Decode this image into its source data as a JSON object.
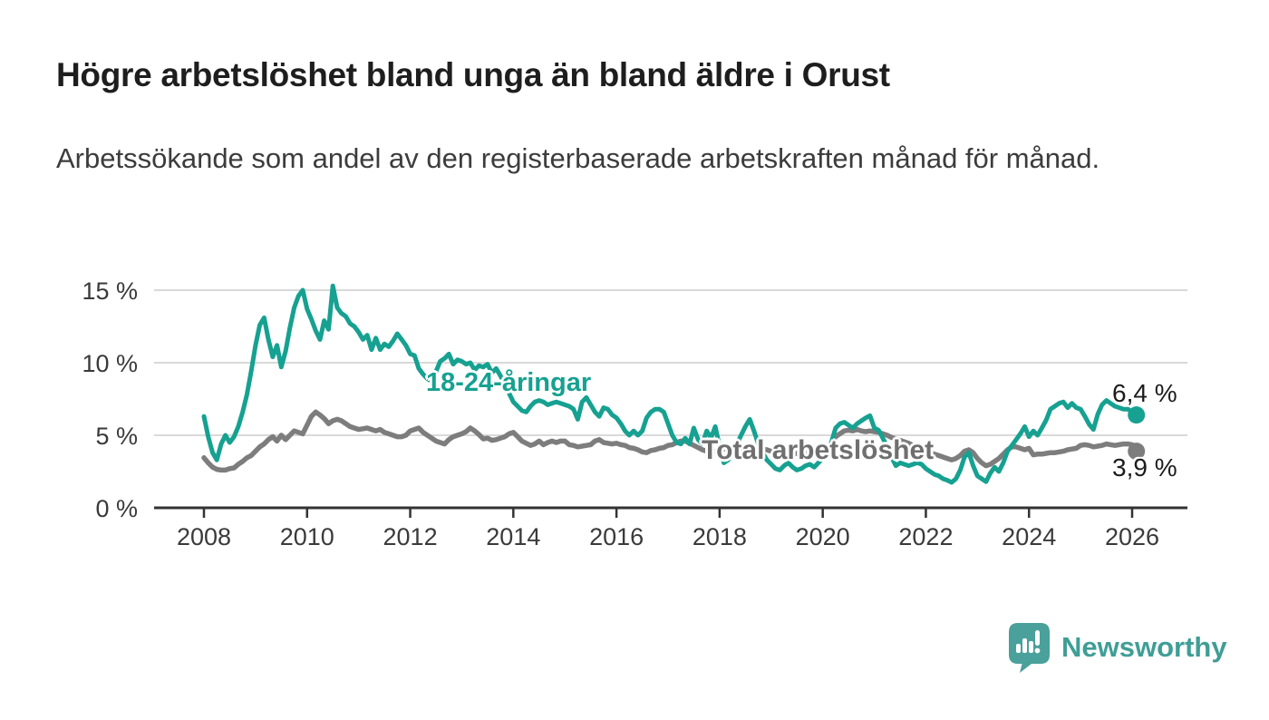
{
  "header": {
    "title": "Högre arbetslöshet bland unga än bland äldre i Orust",
    "subtitle": "Arbetssökande som andel av den registerbaserade arbetskraften månad för månad."
  },
  "chart_data": {
    "type": "line",
    "title": "Högre arbetslöshet bland unga än bland äldre i Orust",
    "subtitle": "Arbetssökande som andel av den registerbaserade arbetskraften månad för månad.",
    "unit": "%",
    "frequency": "monthly",
    "x_start": "2008-01",
    "x_end": "2026-02",
    "ylim": [
      0,
      16
    ],
    "grid": "horizontal",
    "legend_position": "inline-labels",
    "style": {
      "grid_color": "#d9d9d9",
      "axis_color": "#333333",
      "tick_text_color": "#3a3a3a",
      "background": "#ffffff"
    },
    "y_axis": {
      "ticks": [
        {
          "label": "0 %",
          "value": 0
        },
        {
          "label": "5 %",
          "value": 5
        },
        {
          "label": "10 %",
          "value": 10
        },
        {
          "label": "15 %",
          "value": 15
        }
      ]
    },
    "x_axis": {
      "ticks": [
        {
          "label": "2008",
          "year": 2008
        },
        {
          "label": "2010",
          "year": 2010
        },
        {
          "label": "2012",
          "year": 2012
        },
        {
          "label": "2014",
          "year": 2014
        },
        {
          "label": "2016",
          "year": 2016
        },
        {
          "label": "2018",
          "year": 2018
        },
        {
          "label": "2020",
          "year": 2020
        },
        {
          "label": "2022",
          "year": 2022
        },
        {
          "label": "2024",
          "year": 2024
        },
        {
          "label": "2026",
          "year": 2026
        }
      ]
    },
    "series": [
      {
        "id": "youth",
        "name": "18-24-åringar",
        "color": "#16a191",
        "width": 5,
        "end_label": "6,4 %",
        "end_value": 6.4,
        "values": [
          6.3,
          4.9,
          3.8,
          3.3,
          4.4,
          5.0,
          4.5,
          4.9,
          5.6,
          6.6,
          7.8,
          9.4,
          11.2,
          12.6,
          13.1,
          11.6,
          10.4,
          11.2,
          9.7,
          10.8,
          12.4,
          13.8,
          14.6,
          15.0,
          13.7,
          13.0,
          12.2,
          11.6,
          12.9,
          12.3,
          15.3,
          13.8,
          13.4,
          13.2,
          12.7,
          12.5,
          12.1,
          11.6,
          11.9,
          10.9,
          11.7,
          10.9,
          11.3,
          11.1,
          11.5,
          12.0,
          11.6,
          11.2,
          10.6,
          10.5,
          9.6,
          9.2,
          8.9,
          8.7,
          9.4,
          10.1,
          10.3,
          10.6,
          9.9,
          10.2,
          10.1,
          9.9,
          10.0,
          9.5,
          9.8,
          9.7,
          9.9,
          9.3,
          9.6,
          9.1,
          8.5,
          7.9,
          7.3,
          7.0,
          6.7,
          6.6,
          7.0,
          7.3,
          7.4,
          7.3,
          7.1,
          7.2,
          7.3,
          7.2,
          7.1,
          7.0,
          6.8,
          6.1,
          7.3,
          7.6,
          7.1,
          6.6,
          6.3,
          6.9,
          6.8,
          6.4,
          6.2,
          5.8,
          5.3,
          5.0,
          5.3,
          5.0,
          5.3,
          6.2,
          6.6,
          6.8,
          6.8,
          6.6,
          5.8,
          5.0,
          4.5,
          4.4,
          4.8,
          4.4,
          5.5,
          4.7,
          4.4,
          5.3,
          4.8,
          5.6,
          4.2,
          3.1,
          3.3,
          3.8,
          4.4,
          5.0,
          5.6,
          6.1,
          5.3,
          4.4,
          3.8,
          3.3,
          3.0,
          2.7,
          2.6,
          2.9,
          3.1,
          2.8,
          2.6,
          2.7,
          2.9,
          3.0,
          2.8,
          3.1,
          3.4,
          3.6,
          4.5,
          5.5,
          5.8,
          5.9,
          5.7,
          5.5,
          5.8,
          6.0,
          6.2,
          6.35,
          5.5,
          5.35,
          4.8,
          4.2,
          3.5,
          2.9,
          3.1,
          3.0,
          2.9,
          3.0,
          3.1,
          3.0,
          2.7,
          2.5,
          2.3,
          2.2,
          2.0,
          1.9,
          1.75,
          2.0,
          2.6,
          3.5,
          3.8,
          2.9,
          2.2,
          2.0,
          1.8,
          2.4,
          2.8,
          2.5,
          3.1,
          3.9,
          4.3,
          4.7,
          5.1,
          5.6,
          4.9,
          5.3,
          5.0,
          5.5,
          6.05,
          6.8,
          7.0,
          7.2,
          7.3,
          6.9,
          7.2,
          6.9,
          6.8,
          6.3,
          5.75,
          5.4,
          6.45,
          7.1,
          7.4,
          7.2,
          7.0,
          6.9,
          6.8,
          6.8,
          6.6,
          6.4
        ]
      },
      {
        "id": "total",
        "name": "Total arbetslöshet",
        "color": "#7d7d7d",
        "label_color": "#6f6f6f",
        "width": 5.5,
        "end_label": "3,9 %",
        "end_value": 3.9,
        "values": [
          3.45,
          3.1,
          2.8,
          2.65,
          2.6,
          2.6,
          2.7,
          2.75,
          3.0,
          3.2,
          3.45,
          3.6,
          3.9,
          4.2,
          4.4,
          4.7,
          4.9,
          4.6,
          5.0,
          4.7,
          5.0,
          5.3,
          5.2,
          5.1,
          5.7,
          6.3,
          6.6,
          6.4,
          6.15,
          5.8,
          6.0,
          6.1,
          6.0,
          5.8,
          5.6,
          5.5,
          5.4,
          5.45,
          5.5,
          5.4,
          5.3,
          5.4,
          5.2,
          5.1,
          5.0,
          4.9,
          4.9,
          5.0,
          5.3,
          5.4,
          5.5,
          5.2,
          5.0,
          4.8,
          4.6,
          4.5,
          4.4,
          4.7,
          4.9,
          5.0,
          5.1,
          5.25,
          5.5,
          5.3,
          5.05,
          4.75,
          4.8,
          4.65,
          4.7,
          4.8,
          4.9,
          5.1,
          5.2,
          4.9,
          4.6,
          4.45,
          4.3,
          4.4,
          4.6,
          4.35,
          4.5,
          4.6,
          4.5,
          4.6,
          4.6,
          4.35,
          4.3,
          4.2,
          4.25,
          4.3,
          4.35,
          4.6,
          4.7,
          4.5,
          4.45,
          4.4,
          4.45,
          4.35,
          4.3,
          4.15,
          4.1,
          4.0,
          3.85,
          3.8,
          3.95,
          4.0,
          4.1,
          4.15,
          4.3,
          4.35,
          4.5,
          4.6,
          4.6,
          4.45,
          4.3,
          4.15,
          4.0,
          3.9,
          3.85,
          3.9,
          4.0,
          4.05,
          4.1,
          4.05,
          4.0,
          3.95,
          3.9,
          3.95,
          4.05,
          4.1,
          4.05,
          4.0,
          3.9,
          3.85,
          3.8,
          3.75,
          3.7,
          3.7,
          3.75,
          3.7,
          3.7,
          3.8,
          3.9,
          4.0,
          4.0,
          4.1,
          4.4,
          4.9,
          5.1,
          5.3,
          5.35,
          5.3,
          5.4,
          5.3,
          5.25,
          5.3,
          5.25,
          5.2,
          5.1,
          5.0,
          4.85,
          4.75,
          4.65,
          4.55,
          4.45,
          4.3,
          4.2,
          4.1,
          3.9,
          3.8,
          3.7,
          3.6,
          3.5,
          3.4,
          3.3,
          3.4,
          3.6,
          3.9,
          4.0,
          3.8,
          3.4,
          3.1,
          2.9,
          3.0,
          3.2,
          3.4,
          3.7,
          4.0,
          4.2,
          4.2,
          4.1,
          4.0,
          4.1,
          3.65,
          3.7,
          3.7,
          3.75,
          3.8,
          3.8,
          3.85,
          3.9,
          4.0,
          4.05,
          4.1,
          4.3,
          4.35,
          4.3,
          4.2,
          4.25,
          4.3,
          4.4,
          4.35,
          4.3,
          4.35,
          4.4,
          4.4,
          4.35,
          3.9
        ]
      }
    ]
  },
  "footer": {
    "brand": "Newsworthy",
    "brand_text_color": "#3f9e96",
    "brand_icon_color": "#4aa09a"
  }
}
